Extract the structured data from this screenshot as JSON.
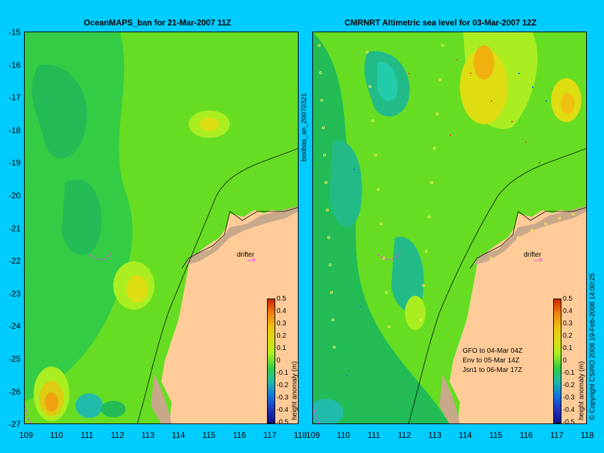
{
  "left_title": "OceanMAPS_ban for 21-Mar-2007 11Z",
  "right_title": "CMRNRT Altimetric sea level  for 03-Mar-2007 12Z",
  "side_label": "boobas_an_20070321",
  "y_axis": {
    "ticks": [
      "-15",
      "-16",
      "-17",
      "-18",
      "-19",
      "-20",
      "-21",
      "-22",
      "-23",
      "-24",
      "-25",
      "-26",
      "-27"
    ]
  },
  "x_axis": {
    "ticks": [
      "109",
      "110",
      "111",
      "112",
      "113",
      "114",
      "115",
      "116",
      "117",
      "118"
    ]
  },
  "colorbar": {
    "ticks": [
      "0.5",
      "0.4",
      "0.3",
      "0.2",
      "0.1",
      "0",
      "-0.1",
      "-0.2",
      "-0.3",
      "-0.4",
      "-0.5"
    ],
    "label": "height anomaly (m)"
  },
  "drifter_label": "drifter",
  "drifter_marker": "-->",
  "satellites": [
    "GFO to 04-Mar 04Z",
    "Env to 05-Mar 14Z",
    "Jsn1 to 06-Mar 17Z"
  ],
  "credit": "© Copyright CSIRO 2008  19-Feb-2008 14:00:25",
  "colors": {
    "background": "#00ccff",
    "land": "#ffcc99",
    "land_detail": "#c8a88a"
  }
}
